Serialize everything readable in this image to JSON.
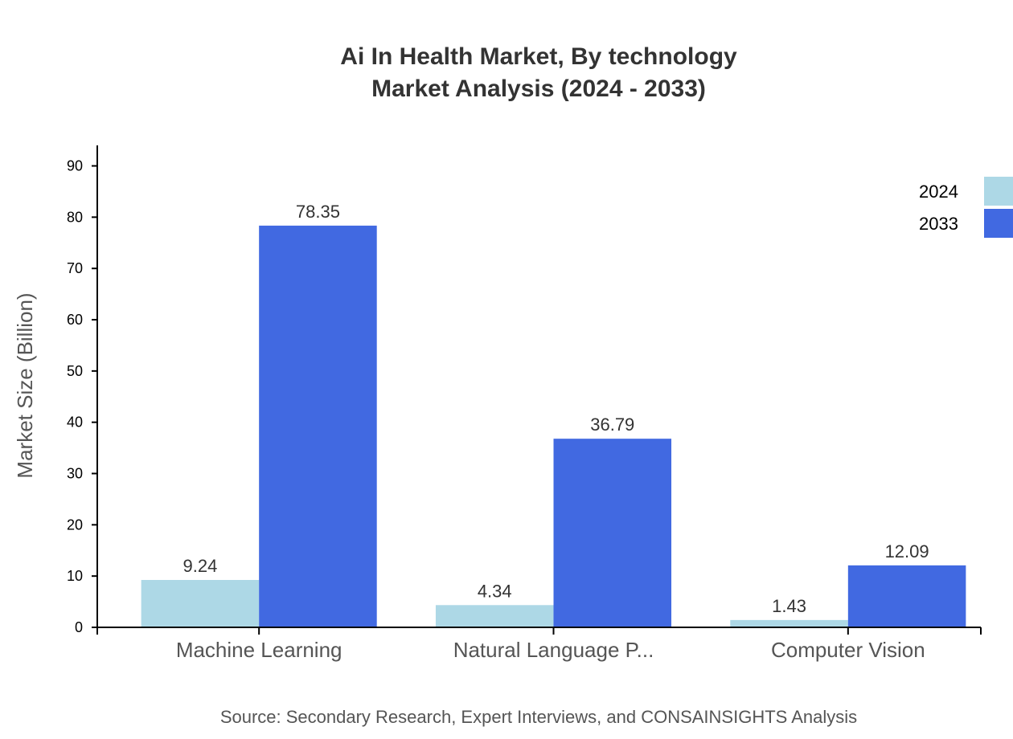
{
  "chart_data": {
    "type": "bar",
    "title": "Ai In Health Market, By technology",
    "subtitle": "Market Analysis (2024 - 2033)",
    "xlabel": "",
    "ylabel": "Market Size (Billion)",
    "ylim": [
      0,
      94
    ],
    "yticks": [
      0,
      10,
      20,
      30,
      40,
      50,
      60,
      70,
      80,
      90
    ],
    "categories": [
      "Machine Learning",
      "Natural Language P...",
      "Computer Vision"
    ],
    "series": [
      {
        "name": "2024",
        "color": "#add8e6",
        "values": [
          9.24,
          4.34,
          1.43
        ]
      },
      {
        "name": "2033",
        "color": "#4169e1",
        "values": [
          78.35,
          36.79,
          12.09
        ]
      }
    ],
    "legend_position": "top-right",
    "grid": false,
    "source": "Source: Secondary Research, Expert Interviews, and CONSAINSIGHTS Analysis"
  }
}
